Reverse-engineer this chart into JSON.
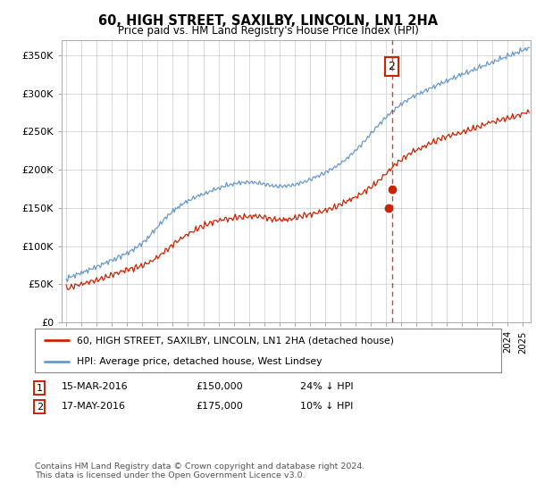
{
  "title": "60, HIGH STREET, SAXILBY, LINCOLN, LN1 2HA",
  "subtitle": "Price paid vs. HM Land Registry's House Price Index (HPI)",
  "ylabel_ticks": [
    "£0",
    "£50K",
    "£100K",
    "£150K",
    "£200K",
    "£250K",
    "£300K",
    "£350K"
  ],
  "ytick_values": [
    0,
    50000,
    100000,
    150000,
    200000,
    250000,
    300000,
    350000
  ],
  "ylim": [
    0,
    370000
  ],
  "xlim_start": 1994.7,
  "xlim_end": 2025.5,
  "hpi_color": "#6699cc",
  "price_color": "#cc2200",
  "vline_color": "#cc2200",
  "marker_color": "#cc2200",
  "transaction1_year": 2016.2,
  "transaction1_price": 150000,
  "transaction2_year": 2016.38,
  "transaction2_price": 175000,
  "legend_line1": "60, HIGH STREET, SAXILBY, LINCOLN, LN1 2HA (detached house)",
  "legend_line2": "HPI: Average price, detached house, West Lindsey",
  "footer": "Contains HM Land Registry data © Crown copyright and database right 2024.\nThis data is licensed under the Open Government Licence v3.0.",
  "background_color": "#ffffff",
  "grid_color": "#cccccc"
}
